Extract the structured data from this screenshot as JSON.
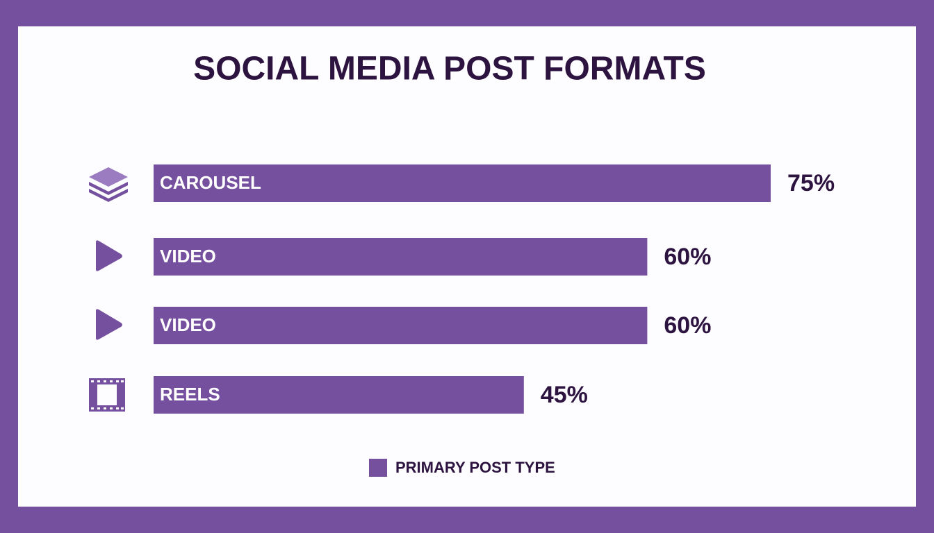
{
  "chart_data": {
    "type": "bar",
    "orientation": "horizontal",
    "title": "SOCIAL MEDIA POST FORMATS",
    "categories": [
      "CAROUSEL",
      "VIDEO",
      "VIDEO",
      "REELS"
    ],
    "series": [
      {
        "name": "PRIMARY POST TYPE",
        "color": "#75509f",
        "values": [
          75,
          60,
          60,
          45
        ],
        "value_labels": [
          "75%",
          "60%",
          "60%",
          "45%"
        ]
      }
    ],
    "legend": "bottom"
  }
}
